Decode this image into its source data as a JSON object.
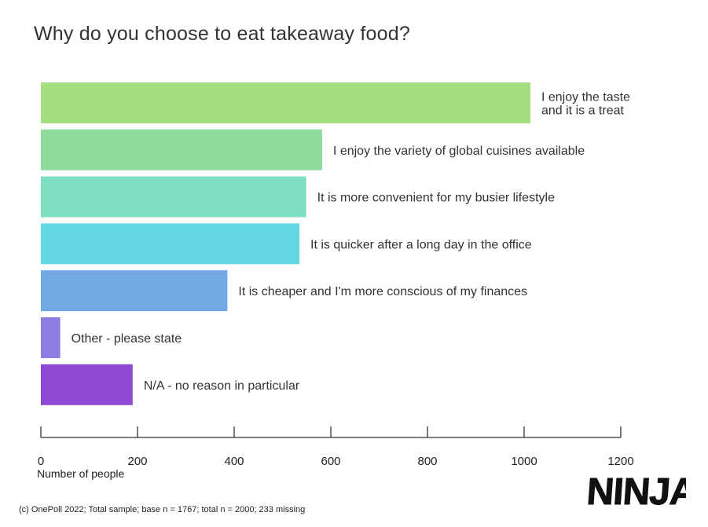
{
  "chart_data": {
    "type": "bar",
    "orientation": "horizontal",
    "title": "Why do you choose to eat takeaway food?",
    "xlabel": "Number of people",
    "ylabel": "",
    "xlim": [
      0,
      1200
    ],
    "xticks": [
      0,
      200,
      400,
      600,
      800,
      1000,
      1200
    ],
    "grid": false,
    "legend": "none",
    "categories": [
      [
        "I enjoy the taste",
        "and it is a treat"
      ],
      [
        "I enjoy the variety of global cuisines available"
      ],
      [
        "It is more convenient for my busier lifestyle"
      ],
      [
        "It is quicker after a long day in the office"
      ],
      [
        "It is cheaper and I'm more conscious of my finances"
      ],
      [
        "Other - please state"
      ],
      [
        "N/A - no reason in particular"
      ]
    ],
    "values": [
      1013,
      582,
      549,
      535,
      386,
      40,
      190
    ],
    "colors": [
      "#a4de7e",
      "#8fdb9d",
      "#7edfc3",
      "#64d9e6",
      "#72a8e4",
      "#8c7ee0",
      "#8e4ad4"
    ]
  },
  "footer": {
    "source_note": "(c) OnePoll 2022; Total sample; base n = 1767; total n = 2000; 233 missing"
  },
  "brand": {
    "logo_text": "NINJA"
  }
}
